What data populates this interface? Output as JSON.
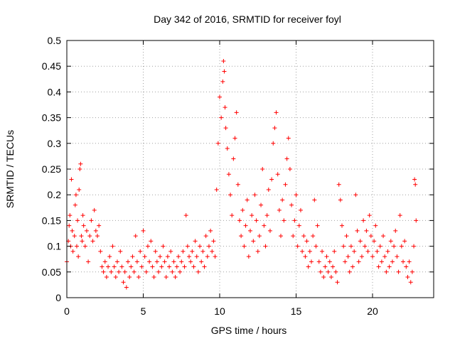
{
  "chart_data": {
    "type": "scatter",
    "title": "Day 342 of 2016, SRMTID for receiver foyl",
    "xlabel": "GPS time / hours",
    "ylabel": "SRMTID / TECUs",
    "xlim": [
      0,
      24
    ],
    "ylim": [
      0,
      0.5
    ],
    "xticks": [
      0,
      5,
      10,
      15,
      20
    ],
    "xtick_labels": [
      "0",
      "5",
      "10",
      "15",
      "20"
    ],
    "yticks": [
      0,
      0.05,
      0.1,
      0.15,
      0.2,
      0.25,
      0.3,
      0.35,
      0.4,
      0.45,
      0.5
    ],
    "ytick_labels": [
      "0",
      "0.05",
      "0.1",
      "0.15",
      "0.2",
      "0.25",
      "0.3",
      "0.35",
      "0.4",
      "0.45",
      "0.5"
    ],
    "grid": true,
    "marker": "+",
    "color": "#ff0000",
    "series": [
      {
        "name": "SRMTID",
        "points": [
          [
            0.0,
            0.07
          ],
          [
            0.1,
            0.11
          ],
          [
            0.15,
            0.14
          ],
          [
            0.2,
            0.16
          ],
          [
            0.25,
            0.1
          ],
          [
            0.3,
            0.23
          ],
          [
            0.35,
            0.13
          ],
          [
            0.4,
            0.09
          ],
          [
            0.5,
            0.12
          ],
          [
            0.55,
            0.18
          ],
          [
            0.6,
            0.2
          ],
          [
            0.65,
            0.1
          ],
          [
            0.7,
            0.15
          ],
          [
            0.75,
            0.08
          ],
          [
            0.8,
            0.21
          ],
          [
            0.85,
            0.25
          ],
          [
            0.9,
            0.26
          ],
          [
            0.95,
            0.12
          ],
          [
            1.0,
            0.11
          ],
          [
            1.05,
            0.16
          ],
          [
            1.1,
            0.14
          ],
          [
            1.2,
            0.1
          ],
          [
            1.3,
            0.13
          ],
          [
            1.4,
            0.07
          ],
          [
            1.5,
            0.12
          ],
          [
            1.6,
            0.15
          ],
          [
            1.7,
            0.11
          ],
          [
            1.8,
            0.17
          ],
          [
            1.9,
            0.13
          ],
          [
            2.0,
            0.12
          ],
          [
            2.1,
            0.14
          ],
          [
            2.2,
            0.09
          ],
          [
            2.3,
            0.06
          ],
          [
            2.4,
            0.05
          ],
          [
            2.5,
            0.07
          ],
          [
            2.6,
            0.04
          ],
          [
            2.7,
            0.06
          ],
          [
            2.8,
            0.08
          ],
          [
            2.9,
            0.05
          ],
          [
            3.0,
            0.1
          ],
          [
            3.1,
            0.06
          ],
          [
            3.2,
            0.04
          ],
          [
            3.3,
            0.07
          ],
          [
            3.4,
            0.05
          ],
          [
            3.5,
            0.09
          ],
          [
            3.6,
            0.06
          ],
          [
            3.7,
            0.03
          ],
          [
            3.8,
            0.05
          ],
          [
            3.9,
            0.02
          ],
          [
            4.0,
            0.07
          ],
          [
            4.1,
            0.04
          ],
          [
            4.2,
            0.06
          ],
          [
            4.3,
            0.08
          ],
          [
            4.4,
            0.05
          ],
          [
            4.5,
            0.12
          ],
          [
            4.6,
            0.07
          ],
          [
            4.7,
            0.04
          ],
          [
            4.8,
            0.09
          ],
          [
            4.9,
            0.06
          ],
          [
            5.0,
            0.13
          ],
          [
            5.1,
            0.08
          ],
          [
            5.2,
            0.05
          ],
          [
            5.3,
            0.1
          ],
          [
            5.4,
            0.07
          ],
          [
            5.5,
            0.11
          ],
          [
            5.6,
            0.06
          ],
          [
            5.7,
            0.04
          ],
          [
            5.8,
            0.09
          ],
          [
            5.9,
            0.07
          ],
          [
            6.0,
            0.05
          ],
          [
            6.1,
            0.08
          ],
          [
            6.2,
            0.06
          ],
          [
            6.3,
            0.1
          ],
          [
            6.4,
            0.07
          ],
          [
            6.5,
            0.04
          ],
          [
            6.6,
            0.08
          ],
          [
            6.7,
            0.06
          ],
          [
            6.8,
            0.09
          ],
          [
            6.9,
            0.05
          ],
          [
            7.0,
            0.07
          ],
          [
            7.1,
            0.04
          ],
          [
            7.2,
            0.06
          ],
          [
            7.3,
            0.08
          ],
          [
            7.4,
            0.05
          ],
          [
            7.5,
            0.07
          ],
          [
            7.6,
            0.09
          ],
          [
            7.7,
            0.06
          ],
          [
            7.8,
            0.16
          ],
          [
            7.9,
            0.1
          ],
          [
            8.0,
            0.08
          ],
          [
            8.1,
            0.07
          ],
          [
            8.2,
            0.09
          ],
          [
            8.3,
            0.06
          ],
          [
            8.4,
            0.11
          ],
          [
            8.5,
            0.08
          ],
          [
            8.6,
            0.05
          ],
          [
            8.7,
            0.1
          ],
          [
            8.8,
            0.07
          ],
          [
            8.9,
            0.09
          ],
          [
            9.0,
            0.06
          ],
          [
            9.1,
            0.12
          ],
          [
            9.2,
            0.08
          ],
          [
            9.3,
            0.1
          ],
          [
            9.4,
            0.13
          ],
          [
            9.5,
            0.09
          ],
          [
            9.6,
            0.11
          ],
          [
            9.7,
            0.08
          ],
          [
            9.8,
            0.21
          ],
          [
            9.9,
            0.3
          ],
          [
            10.0,
            0.39
          ],
          [
            10.1,
            0.35
          ],
          [
            10.2,
            0.42
          ],
          [
            10.25,
            0.46
          ],
          [
            10.3,
            0.44
          ],
          [
            10.35,
            0.37
          ],
          [
            10.4,
            0.33
          ],
          [
            10.5,
            0.29
          ],
          [
            10.6,
            0.24
          ],
          [
            10.7,
            0.2
          ],
          [
            10.8,
            0.16
          ],
          [
            10.9,
            0.27
          ],
          [
            11.0,
            0.31
          ],
          [
            11.1,
            0.36
          ],
          [
            11.2,
            0.22
          ],
          [
            11.3,
            0.15
          ],
          [
            11.4,
            0.12
          ],
          [
            11.5,
            0.17
          ],
          [
            11.6,
            0.1
          ],
          [
            11.7,
            0.14
          ],
          [
            11.8,
            0.19
          ],
          [
            11.9,
            0.08
          ],
          [
            12.0,
            0.13
          ],
          [
            12.1,
            0.16
          ],
          [
            12.2,
            0.11
          ],
          [
            12.3,
            0.2
          ],
          [
            12.4,
            0.15
          ],
          [
            12.5,
            0.09
          ],
          [
            12.6,
            0.12
          ],
          [
            12.7,
            0.18
          ],
          [
            12.8,
            0.25
          ],
          [
            12.9,
            0.14
          ],
          [
            13.0,
            0.1
          ],
          [
            13.1,
            0.16
          ],
          [
            13.2,
            0.21
          ],
          [
            13.3,
            0.13
          ],
          [
            13.4,
            0.23
          ],
          [
            13.5,
            0.3
          ],
          [
            13.6,
            0.33
          ],
          [
            13.7,
            0.36
          ],
          [
            13.8,
            0.24
          ],
          [
            13.9,
            0.17
          ],
          [
            14.0,
            0.12
          ],
          [
            14.1,
            0.19
          ],
          [
            14.2,
            0.15
          ],
          [
            14.3,
            0.22
          ],
          [
            14.4,
            0.27
          ],
          [
            14.5,
            0.31
          ],
          [
            14.6,
            0.25
          ],
          [
            14.7,
            0.18
          ],
          [
            14.8,
            0.12
          ],
          [
            14.9,
            0.15
          ],
          [
            15.0,
            0.2
          ],
          [
            15.1,
            0.1
          ],
          [
            15.2,
            0.14
          ],
          [
            15.3,
            0.17
          ],
          [
            15.4,
            0.09
          ],
          [
            15.5,
            0.12
          ],
          [
            15.6,
            0.08
          ],
          [
            15.7,
            0.11
          ],
          [
            15.8,
            0.06
          ],
          [
            15.9,
            0.09
          ],
          [
            16.0,
            0.07
          ],
          [
            16.1,
            0.12
          ],
          [
            16.2,
            0.19
          ],
          [
            16.3,
            0.1
          ],
          [
            16.4,
            0.14
          ],
          [
            16.5,
            0.07
          ],
          [
            16.6,
            0.05
          ],
          [
            16.7,
            0.09
          ],
          [
            16.8,
            0.04
          ],
          [
            16.9,
            0.06
          ],
          [
            17.0,
            0.08
          ],
          [
            17.1,
            0.05
          ],
          [
            17.2,
            0.07
          ],
          [
            17.3,
            0.04
          ],
          [
            17.4,
            0.06
          ],
          [
            17.5,
            0.09
          ],
          [
            17.6,
            0.05
          ],
          [
            17.7,
            0.03
          ],
          [
            17.8,
            0.22
          ],
          [
            17.9,
            0.19
          ],
          [
            18.0,
            0.14
          ],
          [
            18.1,
            0.1
          ],
          [
            18.2,
            0.07
          ],
          [
            18.3,
            0.12
          ],
          [
            18.4,
            0.08
          ],
          [
            18.5,
            0.05
          ],
          [
            18.6,
            0.1
          ],
          [
            18.7,
            0.06
          ],
          [
            18.8,
            0.09
          ],
          [
            18.9,
            0.2
          ],
          [
            19.0,
            0.13
          ],
          [
            19.1,
            0.07
          ],
          [
            19.2,
            0.11
          ],
          [
            19.3,
            0.08
          ],
          [
            19.4,
            0.15
          ],
          [
            19.5,
            0.1
          ],
          [
            19.6,
            0.13
          ],
          [
            19.7,
            0.09
          ],
          [
            19.8,
            0.16
          ],
          [
            19.9,
            0.12
          ],
          [
            20.0,
            0.08
          ],
          [
            20.1,
            0.11
          ],
          [
            20.2,
            0.14
          ],
          [
            20.3,
            0.09
          ],
          [
            20.4,
            0.06
          ],
          [
            20.5,
            0.1
          ],
          [
            20.6,
            0.07
          ],
          [
            20.7,
            0.12
          ],
          [
            20.8,
            0.08
          ],
          [
            20.9,
            0.05
          ],
          [
            21.0,
            0.09
          ],
          [
            21.1,
            0.06
          ],
          [
            21.2,
            0.11
          ],
          [
            21.3,
            0.07
          ],
          [
            21.4,
            0.1
          ],
          [
            21.5,
            0.13
          ],
          [
            21.6,
            0.08
          ],
          [
            21.7,
            0.05
          ],
          [
            21.8,
            0.16
          ],
          [
            21.9,
            0.1
          ],
          [
            22.0,
            0.07
          ],
          [
            22.1,
            0.11
          ],
          [
            22.2,
            0.06
          ],
          [
            22.3,
            0.04
          ],
          [
            22.4,
            0.07
          ],
          [
            22.5,
            0.03
          ],
          [
            22.6,
            0.05
          ],
          [
            22.7,
            0.1
          ],
          [
            22.75,
            0.23
          ],
          [
            22.8,
            0.22
          ],
          [
            22.85,
            0.15
          ]
        ]
      }
    ]
  }
}
